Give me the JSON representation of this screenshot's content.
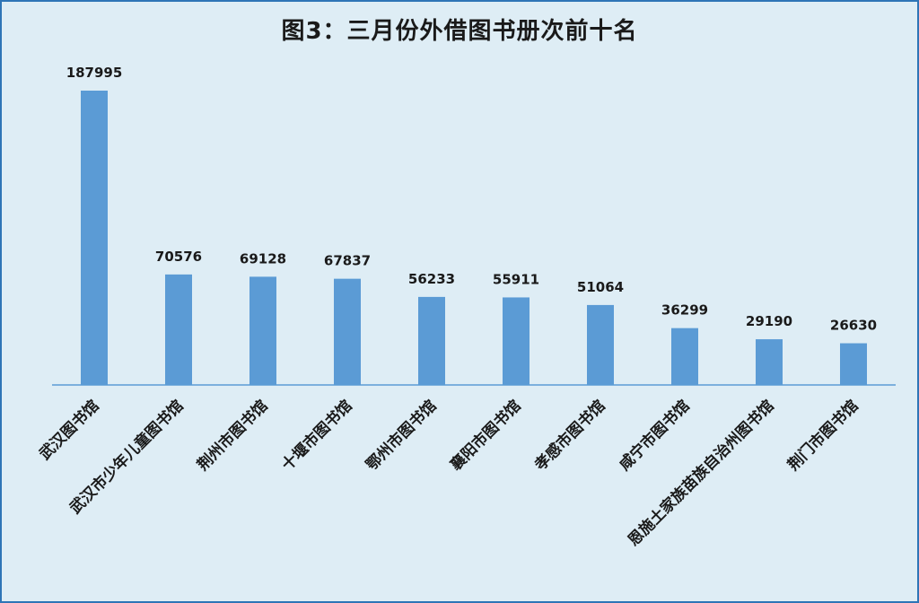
{
  "chart_data": {
    "type": "bar",
    "title": "图3：三月份外借图书册次前十名",
    "categories": [
      "武汉图书馆",
      "武汉市少年儿童图书馆",
      "荆州市图书馆",
      "十堰市图书馆",
      "鄂州市图书馆",
      "襄阳市图书馆",
      "孝感市图书馆",
      "咸宁市图书馆",
      "恩施土家族苗族自治州图书馆",
      "荆门市图书馆"
    ],
    "values": [
      187995,
      70576,
      69128,
      67837,
      56233,
      55911,
      51064,
      36299,
      29190,
      26630
    ],
    "data_labels": [
      "187995",
      "70576",
      "69128",
      "67837",
      "56233",
      "55911",
      "51064",
      "36299",
      "29190",
      "26630"
    ],
    "ylim": [
      0,
      187995
    ],
    "grid": false,
    "legend": "none",
    "bar_color": "#5b9bd5",
    "background_color": "#deedf5",
    "border_color": "#2e75b6"
  }
}
